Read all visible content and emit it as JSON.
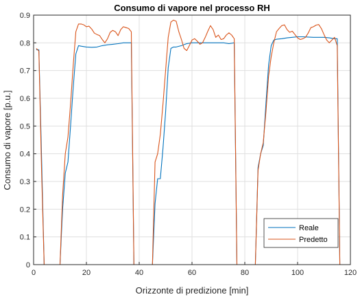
{
  "chart_data": {
    "type": "line",
    "title": "Consumo di vapore nel processo RH",
    "xlabel": "Orizzonte di predizione [min]",
    "ylabel": "Consumo di vapore [p.u.]",
    "xlim": [
      0,
      120
    ],
    "ylim": [
      0,
      0.9
    ],
    "xticks": [
      0,
      20,
      40,
      60,
      80,
      100,
      120
    ],
    "yticks": [
      0,
      0.1,
      0.2,
      0.3,
      0.4,
      0.5,
      0.6,
      0.7,
      0.8,
      0.9
    ],
    "grid": true,
    "legend_position": "bottom-right",
    "series": [
      {
        "name": "Reale",
        "color": "#0072BD",
        "x": [
          1,
          2,
          3,
          4,
          10,
          11,
          12,
          13,
          14,
          15,
          16,
          17,
          18,
          20,
          22,
          24,
          26,
          28,
          30,
          32,
          34,
          36,
          37,
          38,
          45,
          46,
          47,
          48,
          49,
          50,
          51,
          52,
          53,
          54,
          56,
          58,
          60,
          62,
          64,
          66,
          68,
          70,
          72,
          74,
          76,
          77,
          84,
          85,
          86,
          87,
          88,
          89,
          90,
          91,
          92,
          94,
          96,
          98,
          100,
          102,
          104,
          106,
          108,
          110,
          112,
          114,
          115,
          116
        ],
        "y": [
          0.775,
          0.775,
          0.4,
          0,
          0,
          0.2,
          0.33,
          0.37,
          0.5,
          0.64,
          0.76,
          0.79,
          0.788,
          0.785,
          0.784,
          0.785,
          0.79,
          0.793,
          0.795,
          0.797,
          0.8,
          0.8,
          0.8,
          0,
          0,
          0.22,
          0.31,
          0.31,
          0.42,
          0.55,
          0.71,
          0.78,
          0.785,
          0.785,
          0.79,
          0.797,
          0.8,
          0.8,
          0.8,
          0.8,
          0.8,
          0.8,
          0.8,
          0.797,
          0.8,
          0,
          0,
          0.35,
          0.4,
          0.43,
          0.58,
          0.72,
          0.79,
          0.81,
          0.813,
          0.815,
          0.818,
          0.82,
          0.822,
          0.822,
          0.821,
          0.82,
          0.82,
          0.82,
          0.818,
          0.815,
          0.815,
          0
        ]
      },
      {
        "name": "Predetto",
        "color": "#D95319",
        "x": [
          1,
          2,
          3,
          4,
          10,
          11,
          12,
          13,
          14,
          15,
          16,
          17,
          18,
          19,
          20,
          21,
          22,
          23,
          24,
          25,
          26,
          27,
          28,
          29,
          30,
          31,
          32,
          33,
          34,
          35,
          36,
          37,
          38,
          45,
          46,
          47,
          48,
          49,
          50,
          51,
          52,
          53,
          54,
          55,
          56,
          57,
          58,
          59,
          60,
          61,
          62,
          63,
          64,
          65,
          66,
          67,
          68,
          69,
          70,
          71,
          72,
          73,
          74,
          75,
          76,
          77,
          84,
          85,
          86,
          87,
          88,
          89,
          90,
          91,
          92,
          93,
          94,
          95,
          96,
          97,
          98,
          99,
          100,
          101,
          102,
          103,
          104,
          105,
          106,
          107,
          108,
          109,
          110,
          111,
          112,
          113,
          114,
          115,
          116
        ],
        "y": [
          0.78,
          0.77,
          0.35,
          0,
          0,
          0.25,
          0.4,
          0.46,
          0.58,
          0.72,
          0.84,
          0.868,
          0.868,
          0.865,
          0.858,
          0.86,
          0.85,
          0.835,
          0.83,
          0.826,
          0.812,
          0.8,
          0.815,
          0.838,
          0.845,
          0.84,
          0.826,
          0.848,
          0.858,
          0.855,
          0.852,
          0.84,
          0,
          0,
          0.37,
          0.4,
          0.47,
          0.58,
          0.7,
          0.82,
          0.875,
          0.882,
          0.878,
          0.84,
          0.812,
          0.78,
          0.772,
          0.79,
          0.81,
          0.815,
          0.806,
          0.795,
          0.8,
          0.82,
          0.842,
          0.862,
          0.848,
          0.82,
          0.828,
          0.812,
          0.815,
          0.828,
          0.836,
          0.828,
          0.815,
          0,
          0,
          0.34,
          0.4,
          0.44,
          0.55,
          0.68,
          0.75,
          0.8,
          0.84,
          0.852,
          0.862,
          0.865,
          0.848,
          0.838,
          0.842,
          0.83,
          0.818,
          0.812,
          0.815,
          0.82,
          0.835,
          0.855,
          0.858,
          0.864,
          0.866,
          0.852,
          0.83,
          0.81,
          0.8,
          0.81,
          0.82,
          0.79,
          0
        ]
      }
    ]
  }
}
